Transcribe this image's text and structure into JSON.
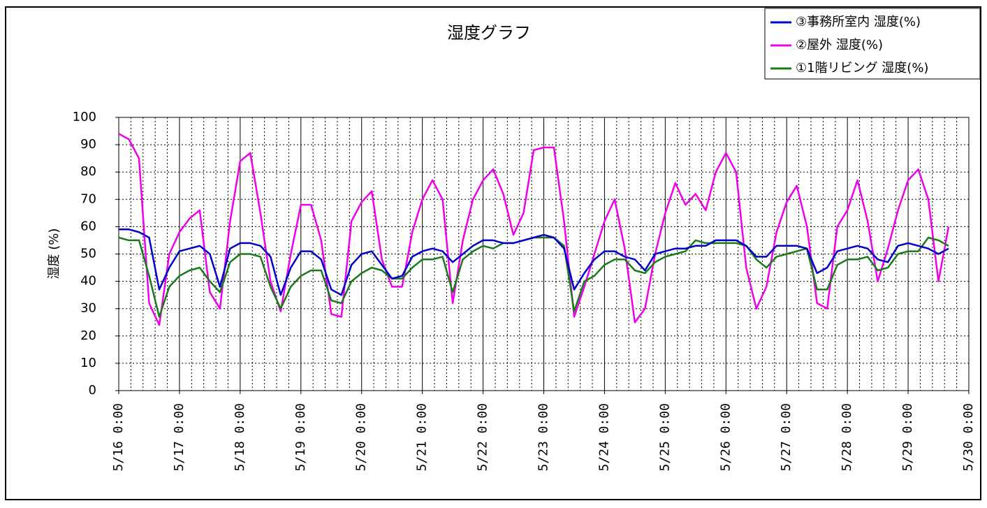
{
  "chart_data": {
    "type": "line",
    "title": "湿度グラフ",
    "y_label": "湿度 (%)",
    "x": [
      "5/16 0:00",
      "5/16 4:00",
      "5/16 8:00",
      "5/16 12:00",
      "5/16 16:00",
      "5/16 20:00",
      "5/17 0:00",
      "5/17 4:00",
      "5/17 8:00",
      "5/17 12:00",
      "5/17 16:00",
      "5/17 20:00",
      "5/18 0:00",
      "5/18 4:00",
      "5/18 8:00",
      "5/18 12:00",
      "5/18 16:00",
      "5/18 20:00",
      "5/19 0:00",
      "5/19 4:00",
      "5/19 8:00",
      "5/19 12:00",
      "5/19 16:00",
      "5/19 20:00",
      "5/20 0:00",
      "5/20 4:00",
      "5/20 8:00",
      "5/20 12:00",
      "5/20 16:00",
      "5/20 20:00",
      "5/21 0:00",
      "5/21 4:00",
      "5/21 8:00",
      "5/21 12:00",
      "5/21 16:00",
      "5/21 20:00",
      "5/22 0:00",
      "5/22 4:00",
      "5/22 8:00",
      "5/22 12:00",
      "5/22 16:00",
      "5/22 20:00",
      "5/23 0:00",
      "5/23 4:00",
      "5/23 8:00",
      "5/23 12:00",
      "5/23 16:00",
      "5/23 20:00",
      "5/24 0:00",
      "5/24 4:00",
      "5/24 8:00",
      "5/24 12:00",
      "5/24 16:00",
      "5/24 20:00",
      "5/25 0:00",
      "5/25 4:00",
      "5/25 8:00",
      "5/25 12:00",
      "5/25 16:00",
      "5/25 20:00",
      "5/26 0:00",
      "5/26 4:00",
      "5/26 8:00",
      "5/26 12:00",
      "5/26 16:00",
      "5/26 20:00",
      "5/27 0:00",
      "5/27 4:00",
      "5/27 8:00",
      "5/27 12:00",
      "5/27 16:00",
      "5/27 20:00",
      "5/28 0:00",
      "5/28 4:00",
      "5/28 8:00",
      "5/28 12:00",
      "5/28 16:00",
      "5/28 20:00",
      "5/29 0:00",
      "5/29 4:00",
      "5/29 8:00",
      "5/29 12:00",
      "5/29 16:00"
    ],
    "series": [
      {
        "name": "③事務所室内 湿度(%)",
        "color": "#0000cc",
        "values": [
          59,
          59,
          58,
          56,
          37,
          45,
          51,
          52,
          53,
          50,
          38,
          52,
          54,
          54,
          53,
          49,
          35,
          45,
          51,
          51,
          48,
          37,
          35,
          46,
          50,
          51,
          46,
          41,
          42,
          49,
          51,
          52,
          51,
          47,
          50,
          53,
          55,
          55,
          54,
          54,
          55,
          56,
          57,
          56,
          52,
          37,
          43,
          48,
          51,
          51,
          49,
          48,
          44,
          50,
          51,
          52,
          52,
          53,
          53,
          55,
          55,
          55,
          53,
          49,
          49,
          53,
          53,
          53,
          52,
          43,
          45,
          51,
          52,
          53,
          52,
          48,
          47,
          53,
          54,
          53,
          52,
          50,
          52
        ]
      },
      {
        "name": "②屋外 湿度(%)",
        "color": "#ee00ee",
        "values": [
          94,
          92,
          85,
          32,
          24,
          50,
          58,
          63,
          66,
          36,
          30,
          62,
          84,
          87,
          65,
          40,
          29,
          50,
          68,
          68,
          55,
          28,
          27,
          62,
          69,
          73,
          48,
          38,
          38,
          58,
          70,
          77,
          70,
          32,
          55,
          70,
          77,
          81,
          72,
          57,
          65,
          88,
          89,
          89,
          62,
          27,
          38,
          50,
          62,
          70,
          52,
          25,
          30,
          50,
          65,
          76,
          68,
          72,
          66,
          80,
          87,
          80,
          45,
          30,
          38,
          58,
          69,
          75,
          60,
          32,
          30,
          60,
          66,
          77,
          62,
          40,
          52,
          66,
          77,
          81,
          70,
          40,
          60
        ]
      },
      {
        "name": "①1階リビング 湿度(%)",
        "color": "#1a7a1a",
        "values": [
          56,
          55,
          55,
          42,
          27,
          38,
          42,
          44,
          45,
          40,
          36,
          47,
          50,
          50,
          49,
          38,
          30,
          38,
          42,
          44,
          44,
          33,
          32,
          40,
          43,
          45,
          44,
          41,
          41,
          45,
          48,
          48,
          49,
          36,
          48,
          51,
          53,
          52,
          54,
          54,
          55,
          56,
          56,
          56,
          53,
          29,
          40,
          42,
          46,
          48,
          48,
          44,
          43,
          47,
          49,
          50,
          51,
          55,
          54,
          54,
          54,
          54,
          53,
          48,
          45,
          49,
          50,
          51,
          52,
          37,
          37,
          46,
          48,
          48,
          49,
          44,
          45,
          50,
          51,
          51,
          56,
          55,
          53
        ]
      }
    ],
    "xlim": [
      "5/16 0:00",
      "5/30 0:00"
    ],
    "xticks": [
      "5/16 0:00",
      "5/17 0:00",
      "5/18 0:00",
      "5/19 0:00",
      "5/20 0:00",
      "5/21 0:00",
      "5/22 0:00",
      "5/23 0:00",
      "5/24 0:00",
      "5/25 0:00",
      "5/26 0:00",
      "5/27 0:00",
      "5/28 0:00",
      "5/29 0:00",
      "5/30 0:00"
    ],
    "ylim": [
      0,
      100
    ],
    "yticks": [
      0,
      10,
      20,
      30,
      40,
      50,
      60,
      70,
      80,
      90,
      100
    ],
    "grid": true,
    "legend": "upper right"
  }
}
